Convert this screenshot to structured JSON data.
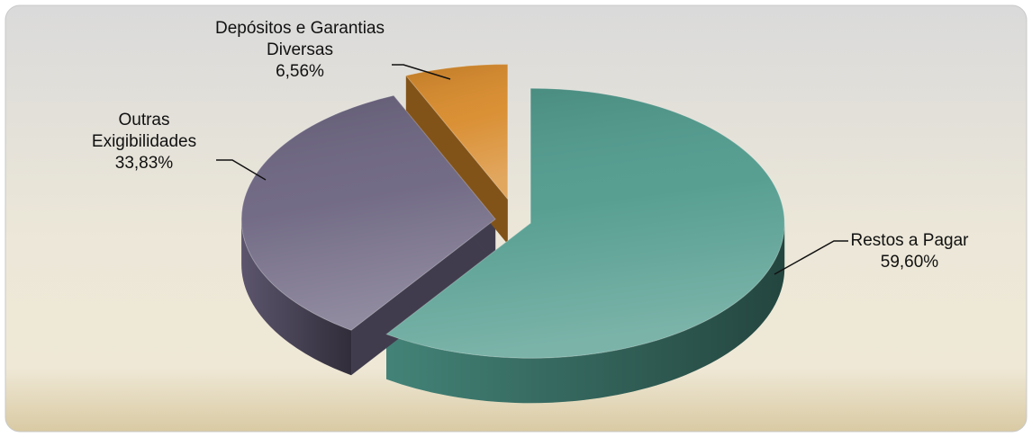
{
  "chart_data": {
    "type": "pie",
    "categories": [
      "Restos a Pagar",
      "Outras Exigibilidades",
      "Depósitos e Garantias Diversas"
    ],
    "values": [
      59.6,
      33.83,
      6.56
    ],
    "value_labels": [
      "59,60%",
      "33,83%",
      "6,56%"
    ],
    "colors": [
      "#4f9a8c",
      "#6c6480",
      "#d88a2a"
    ],
    "legend": false
  }
}
